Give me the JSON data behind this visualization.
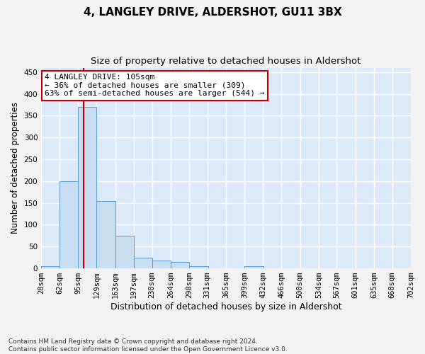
{
  "title": "4, LANGLEY DRIVE, ALDERSHOT, GU11 3BX",
  "subtitle": "Size of property relative to detached houses in Aldershot",
  "xlabel": "Distribution of detached houses by size in Aldershot",
  "ylabel": "Number of detached properties",
  "bins": [
    28,
    62,
    95,
    129,
    163,
    197,
    230,
    264,
    298,
    331,
    365,
    399,
    432,
    466,
    500,
    534,
    567,
    601,
    635,
    668,
    702
  ],
  "counts": [
    5,
    200,
    370,
    155,
    75,
    25,
    18,
    15,
    5,
    0,
    0,
    5,
    0,
    0,
    0,
    0,
    0,
    0,
    0,
    0
  ],
  "bar_color": "#c9ddf0",
  "bar_edge_color": "#5b9bd5",
  "property_size": 105,
  "property_line_color": "#c00000",
  "annotation_line1": "4 LANGLEY DRIVE: 105sqm",
  "annotation_line2": "← 36% of detached houses are smaller (309)",
  "annotation_line3": "63% of semi-detached houses are larger (544) →",
  "annotation_box_color": "#ffffff",
  "annotation_border_color": "#c00000",
  "ylim": [
    0,
    460
  ],
  "yticks": [
    0,
    50,
    100,
    150,
    200,
    250,
    300,
    350,
    400,
    450
  ],
  "footnote_line1": "Contains HM Land Registry data © Crown copyright and database right 2024.",
  "footnote_line2": "Contains public sector information licensed under the Open Government Licence v3.0.",
  "fig_bg_color": "#f2f2f2",
  "plot_bg_color": "#dce9f8",
  "grid_color": "#ffffff",
  "title_fontsize": 11,
  "subtitle_fontsize": 9.5,
  "tick_fontsize": 7.5,
  "ylabel_fontsize": 8.5,
  "xlabel_fontsize": 9,
  "footnote_fontsize": 6.5,
  "annotation_fontsize": 8
}
